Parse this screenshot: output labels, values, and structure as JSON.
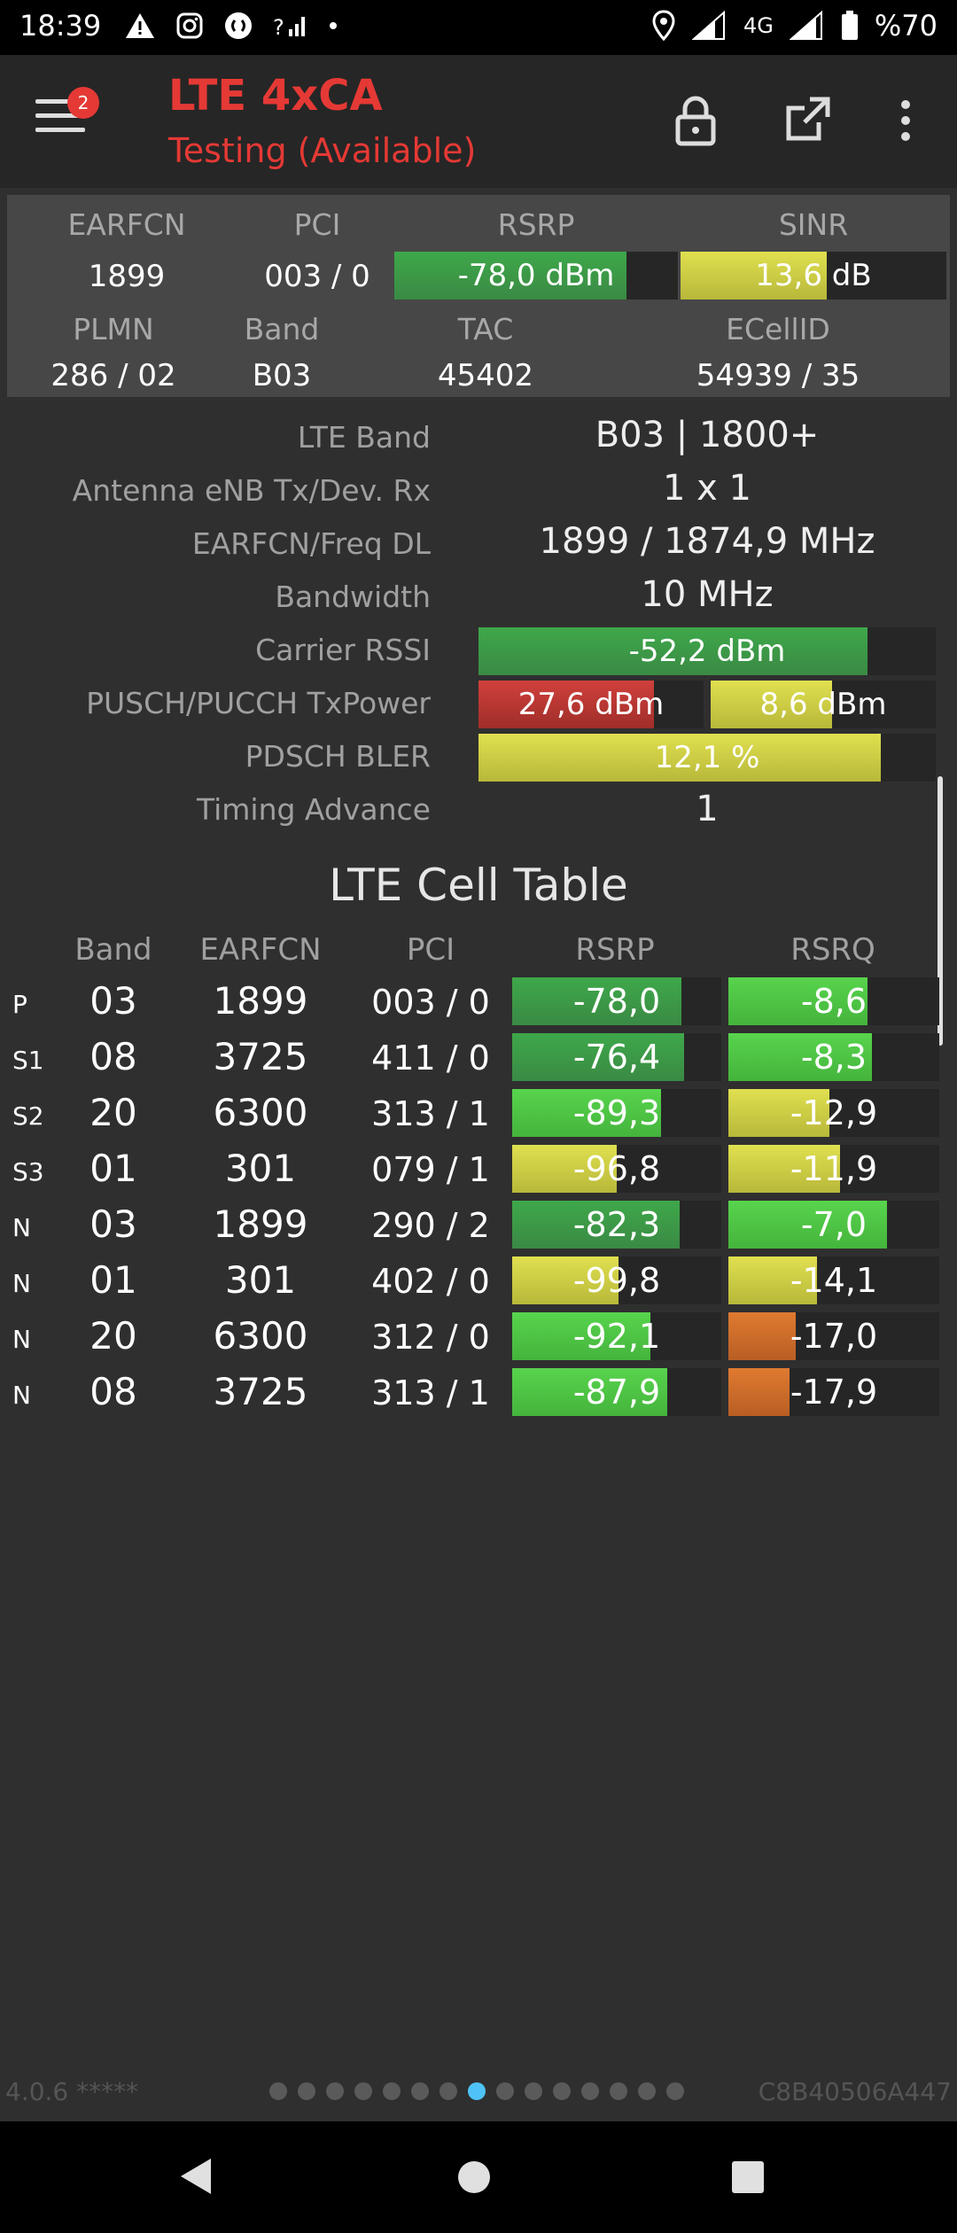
{
  "status_bar": {
    "time": "18:39",
    "network": "4G",
    "battery": "%70",
    "left_icons": [
      "warning-icon",
      "instagram-icon",
      "shazam-icon",
      "wifi-calling-icon",
      "dot-icon"
    ],
    "right_icons": [
      "location-icon",
      "signal-icon",
      "signal-4g-icon",
      "battery-icon"
    ]
  },
  "app_bar": {
    "badge_count": "2",
    "title": "LTE 4xCA",
    "subtitle": "Testing (Available)",
    "title_color": "#e53935"
  },
  "summary": {
    "headers": {
      "earfcn": "EARFCN",
      "pci": "PCI",
      "rsrp": "RSRP",
      "sinr": "SINR"
    },
    "values": {
      "earfcn": "1899",
      "pci": "003 / 0",
      "rsrp": "-78,0 dBm",
      "sinr": "13,6 dB"
    },
    "rsrp_level": 0.82,
    "sinr_level": 0.55,
    "headers2": {
      "plmn": "PLMN",
      "band": "Band",
      "tac": "TAC",
      "ecellid": "ECellID"
    },
    "values2": {
      "plmn": "286 / 02",
      "band": "B03",
      "tac": "45402",
      "ecellid": "54939 / 35"
    }
  },
  "details": [
    {
      "label": "LTE Band",
      "value": "B03 | 1800+"
    },
    {
      "label": "Antenna eNB Tx/Dev. Rx",
      "value": "1 x 1"
    },
    {
      "label": "EARFCN/Freq DL",
      "value": "1899 / 1874,9 MHz"
    },
    {
      "label": "Bandwidth",
      "value": "10 MHz"
    },
    {
      "label": "Carrier RSSI",
      "value": "-52,2 dBm",
      "level": 0.85
    },
    {
      "label": "PUSCH/PUCCH TxPower",
      "value": "27,6 dBm",
      "value2": "8,6 dBm",
      "level": 0.78,
      "level2": 0.54
    },
    {
      "label": "PDSCH BLER",
      "value": "12,1 %",
      "level": 0.88
    },
    {
      "label": "Timing Advance",
      "value": "1"
    }
  ],
  "cell_table": {
    "title": "LTE Cell Table",
    "headers": {
      "band": "Band",
      "earfcn": "EARFCN",
      "pci": "PCI",
      "rsrp": "RSRP",
      "rsrq": "RSRQ"
    },
    "rows": [
      {
        "type": "P",
        "band": "03",
        "earfcn": "1899",
        "pci": "003 / 0",
        "rsrp": "-78,0",
        "rsrq": "-8,6",
        "rsrp_level": 0.81,
        "rsrq_level": 0.66,
        "rsrp_color": "g-dark",
        "rsrq_color": "g-bright"
      },
      {
        "type": "S1",
        "band": "08",
        "earfcn": "3725",
        "pci": "411 / 0",
        "rsrp": "-76,4",
        "rsrq": "-8,3",
        "rsrp_level": 0.82,
        "rsrq_level": 0.68,
        "rsrp_color": "g-dark",
        "rsrq_color": "g-bright"
      },
      {
        "type": "S2",
        "band": "20",
        "earfcn": "6300",
        "pci": "313 / 1",
        "rsrp": "-89,3",
        "rsrq": "-12,9",
        "rsrp_level": 0.71,
        "rsrq_level": 0.48,
        "rsrp_color": "g-bright",
        "rsrq_color": "y-fill"
      },
      {
        "type": "S3",
        "band": "01",
        "earfcn": "301",
        "pci": "079 / 1",
        "rsrp": "-96,8",
        "rsrq": "-11,9",
        "rsrp_level": 0.5,
        "rsrq_level": 0.53,
        "rsrp_color": "y-fill",
        "rsrq_color": "y-fill"
      },
      {
        "type": "N",
        "band": "03",
        "earfcn": "1899",
        "pci": "290 / 2",
        "rsrp": "-82,3",
        "rsrq": "-7,0",
        "rsrp_level": 0.8,
        "rsrq_level": 0.75,
        "rsrp_color": "g-dark",
        "rsrq_color": "g-bright"
      },
      {
        "type": "N",
        "band": "01",
        "earfcn": "301",
        "pci": "402 / 0",
        "rsrp": "-99,8",
        "rsrq": "-14,1",
        "rsrp_level": 0.51,
        "rsrq_level": 0.42,
        "rsrp_color": "y-fill",
        "rsrq_color": "y-fill"
      },
      {
        "type": "N",
        "band": "20",
        "earfcn": "6300",
        "pci": "312 / 0",
        "rsrp": "-92,1",
        "rsrq": "-17,0",
        "rsrp_level": 0.66,
        "rsrq_level": 0.32,
        "rsrp_color": "g-bright",
        "rsrq_color": "o-fill"
      },
      {
        "type": "N",
        "band": "08",
        "earfcn": "3725",
        "pci": "313 / 1",
        "rsrp": "-87,9",
        "rsrq": "-17,9",
        "rsrp_level": 0.74,
        "rsrq_level": 0.29,
        "rsrp_color": "g-bright",
        "rsrq_color": "o-fill"
      }
    ]
  },
  "footer": {
    "version": "4.0.6 *****",
    "device_id": "C8B40506A447",
    "page_count": 15,
    "active_page": 7
  },
  "nav_bar": {
    "icons": [
      "back-icon",
      "home-icon",
      "recents-icon"
    ]
  }
}
